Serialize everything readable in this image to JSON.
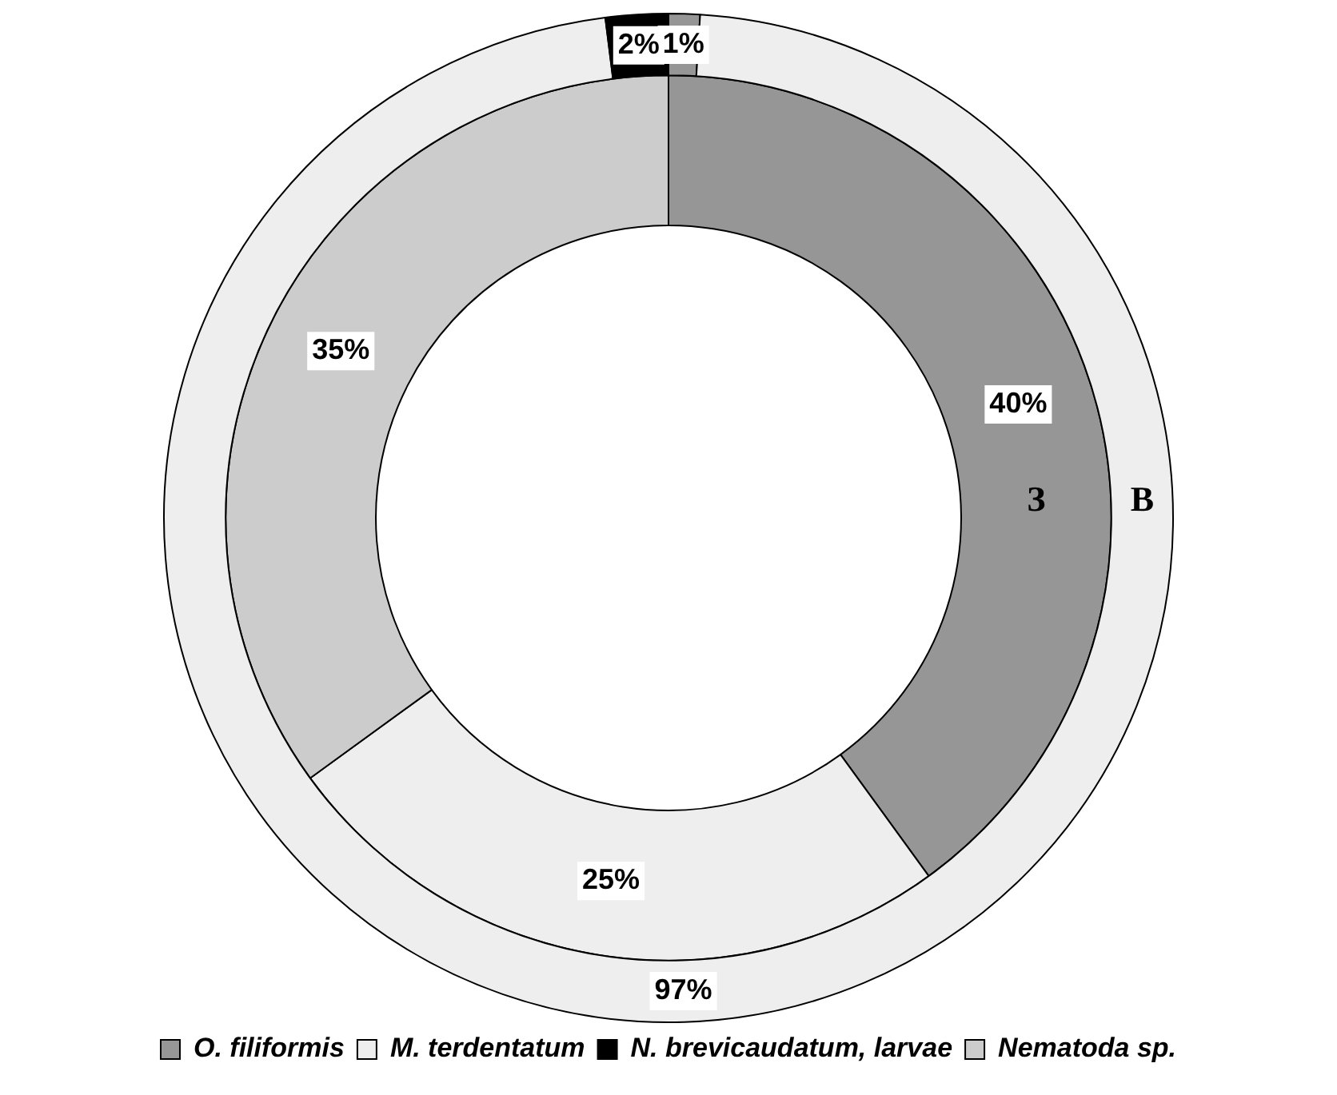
{
  "chart_data": {
    "type": "donut",
    "categories": [
      "O. filiformis",
      "M. terdentatum",
      "N. brevicaudatum, larvae",
      "Nematoda sp."
    ],
    "colors": [
      "#969696",
      "#eeeeee",
      "#000000",
      "#cccccc"
    ],
    "legend": "bottom",
    "series": [
      {
        "name": "В",
        "values": [
          1,
          97,
          2,
          0
        ],
        "value_labels": [
          "1%",
          "97%",
          "2%",
          null
        ]
      },
      {
        "name": "З",
        "values": [
          40,
          25,
          0,
          35
        ],
        "value_labels": [
          "40%",
          "25%",
          null,
          "35%"
        ]
      }
    ]
  }
}
